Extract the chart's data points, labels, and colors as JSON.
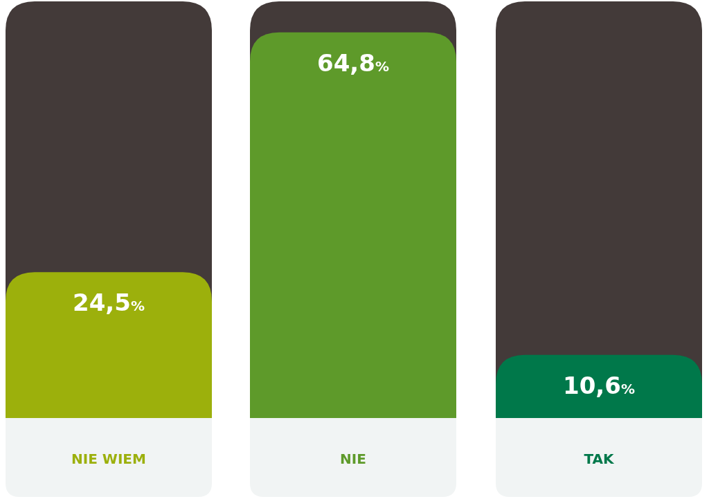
{
  "chart_data": {
    "type": "bar",
    "categories": [
      "NIE WIEM",
      "NIE",
      "TAK"
    ],
    "values": [
      24.5,
      64.8,
      10.6
    ],
    "colors": [
      "#9cb00c",
      "#5e9a2a",
      "#00784a"
    ],
    "value_labels": [
      "24,5%",
      "64,8%",
      "10,6%"
    ],
    "ylim": [
      0,
      70
    ]
  }
}
